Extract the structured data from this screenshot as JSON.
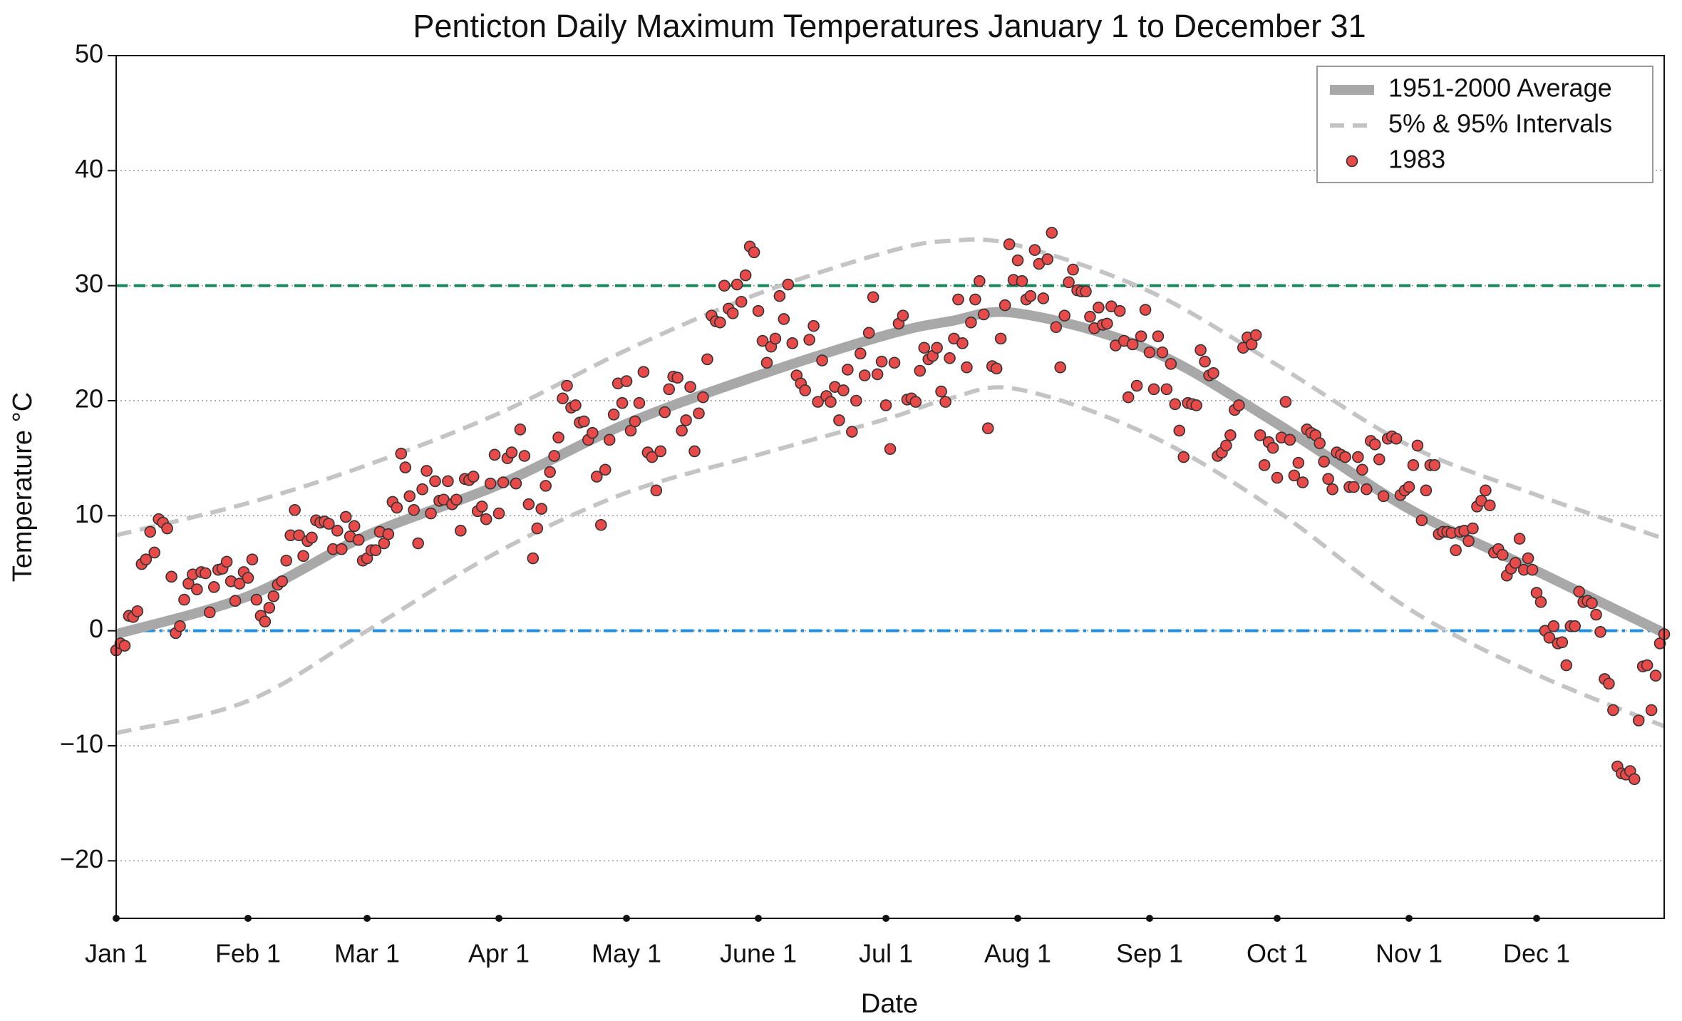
{
  "chart_data": {
    "type": "scatter",
    "title": "Penticton Daily Maximum Temperatures January 1 to December 31",
    "xlabel": "Date",
    "ylabel": "Temperature °C",
    "xlim": [
      1,
      365
    ],
    "xticks": [
      {
        "value": 1,
        "label": "Jan 1"
      },
      {
        "value": 32,
        "label": "Feb 1"
      },
      {
        "value": 60,
        "label": "Mar 1"
      },
      {
        "value": 91,
        "label": "Apr 1"
      },
      {
        "value": 121,
        "label": "May 1"
      },
      {
        "value": 152,
        "label": "June 1"
      },
      {
        "value": 182,
        "label": "Jul 1"
      },
      {
        "value": 213,
        "label": "Aug 1"
      },
      {
        "value": 244,
        "label": "Sep 1"
      },
      {
        "value": 274,
        "label": "Oct 1"
      },
      {
        "value": 305,
        "label": "Nov 1"
      },
      {
        "value": 335,
        "label": "Dec 1"
      }
    ],
    "ylim": [
      -25,
      50
    ],
    "yticks": [
      {
        "value": -20,
        "label": "−20"
      },
      {
        "value": -10,
        "label": "−10"
      },
      0,
      10,
      20,
      30,
      40,
      50
    ],
    "grid": true,
    "legend": "upper right",
    "reference_lines": [
      {
        "value": 30,
        "color": "#17875a",
        "style": "dashed"
      },
      {
        "value": 0,
        "color": "#1b8fe3",
        "style": "dashdot"
      }
    ],
    "series": [
      {
        "name": "1951-2000 Average",
        "type": "line",
        "color": "#a8a8a8",
        "x": [
          1,
          32,
          60,
          91,
          121,
          152,
          182,
          197,
          213,
          244,
          274,
          305,
          335,
          365
        ],
        "values": [
          -0.3,
          3.0,
          8.3,
          12.7,
          18.0,
          22.2,
          25.7,
          26.9,
          27.6,
          24.4,
          18.0,
          10.6,
          5.2,
          -0.2
        ]
      },
      {
        "name": "5% & 95% Intervals",
        "type": "band-lines",
        "color": "#c4c4c4",
        "x": [
          1,
          32,
          60,
          91,
          121,
          152,
          182,
          197,
          213,
          244,
          274,
          305,
          335,
          365
        ],
        "lower": [
          -8.9,
          -6.1,
          0.0,
          6.9,
          12.0,
          15.3,
          18.4,
          20.2,
          21.0,
          17.0,
          10.4,
          1.9,
          -3.8,
          -8.3
        ],
        "upper": [
          8.3,
          11.1,
          14.4,
          18.9,
          24.4,
          29.3,
          32.9,
          33.9,
          33.5,
          29.5,
          23.1,
          16.1,
          11.8,
          8.0
        ]
      },
      {
        "name": "1983",
        "type": "scatter",
        "color": "#e84a4a",
        "x": [
          1,
          2,
          3,
          4,
          5,
          6,
          7,
          8,
          9,
          10,
          11,
          12,
          13,
          14,
          15,
          16,
          17,
          18,
          19,
          20,
          21,
          22,
          23,
          24,
          25,
          26,
          27,
          28,
          29,
          30,
          31,
          32,
          33,
          34,
          35,
          36,
          37,
          38,
          39,
          40,
          41,
          42,
          43,
          44,
          45,
          46,
          47,
          48,
          49,
          50,
          51,
          52,
          53,
          54,
          55,
          56,
          57,
          58,
          59,
          60,
          61,
          62,
          63,
          64,
          65,
          66,
          67,
          68,
          69,
          70,
          71,
          72,
          73,
          74,
          75,
          76,
          77,
          78,
          79,
          80,
          81,
          82,
          83,
          84,
          85,
          86,
          87,
          88,
          89,
          90,
          91,
          92,
          93,
          94,
          95,
          96,
          97,
          98,
          99,
          100,
          101,
          102,
          103,
          104,
          105,
          106,
          107,
          108,
          109,
          110,
          111,
          112,
          113,
          114,
          115,
          116,
          117,
          118,
          119,
          120,
          121,
          122,
          123,
          124,
          125,
          126,
          127,
          128,
          129,
          130,
          131,
          132,
          133,
          134,
          135,
          136,
          137,
          138,
          139,
          140,
          141,
          142,
          143,
          144,
          145,
          146,
          147,
          148,
          149,
          150,
          151,
          152,
          153,
          154,
          155,
          156,
          157,
          158,
          159,
          160,
          161,
          162,
          163,
          164,
          165,
          166,
          167,
          168,
          169,
          170,
          171,
          172,
          173,
          174,
          175,
          176,
          177,
          178,
          179,
          180,
          181,
          182,
          183,
          184,
          185,
          186,
          187,
          188,
          189,
          190,
          191,
          192,
          193,
          194,
          195,
          196,
          197,
          198,
          199,
          200,
          201,
          202,
          203,
          204,
          205,
          206,
          207,
          208,
          209,
          210,
          211,
          212,
          213,
          214,
          215,
          216,
          217,
          218,
          219,
          220,
          221,
          222,
          223,
          224,
          225,
          226,
          227,
          228,
          229,
          230,
          231,
          232,
          233,
          234,
          235,
          236,
          237,
          238,
          239,
          240,
          241,
          242,
          243,
          244,
          245,
          246,
          247,
          248,
          249,
          250,
          251,
          252,
          253,
          254,
          255,
          256,
          257,
          258,
          259,
          260,
          261,
          262,
          263,
          264,
          265,
          266,
          267,
          268,
          269,
          270,
          271,
          272,
          273,
          274,
          275,
          276,
          277,
          278,
          279,
          280,
          281,
          282,
          283,
          284,
          285,
          286,
          287,
          288,
          289,
          290,
          291,
          292,
          293,
          294,
          295,
          296,
          297,
          298,
          299,
          300,
          301,
          302,
          303,
          304,
          305,
          306,
          307,
          308,
          309,
          310,
          311,
          312,
          313,
          314,
          315,
          316,
          317,
          318,
          319,
          320,
          321,
          322,
          323,
          324,
          325,
          326,
          327,
          328,
          329,
          330,
          331,
          332,
          333,
          334,
          335,
          336,
          337,
          338,
          339,
          340,
          341,
          342,
          343,
          344,
          345,
          346,
          347,
          348,
          349,
          350,
          351,
          352,
          353,
          354,
          355,
          356,
          357,
          358,
          359,
          360,
          361,
          362,
          363,
          364,
          365
        ],
        "values": [
          -1.7,
          -1.1,
          -1.3,
          1.3,
          1.2,
          1.7,
          5.8,
          6.2,
          8.6,
          6.8,
          9.7,
          9.4,
          8.9,
          4.7,
          -0.2,
          0.4,
          2.7,
          4.1,
          4.9,
          3.6,
          5.1,
          5.0,
          1.6,
          3.8,
          5.3,
          5.4,
          6.0,
          4.3,
          2.6,
          4.1,
          5.1,
          4.6,
          6.2,
          2.7,
          1.3,
          0.8,
          2.0,
          3.0,
          4.0,
          4.3,
          6.1,
          8.3,
          10.5,
          8.3,
          6.5,
          7.8,
          8.1,
          9.6,
          9.4,
          9.5,
          9.3,
          7.1,
          8.7,
          7.1,
          9.9,
          8.2,
          9.1,
          7.9,
          6.1,
          6.3,
          7.0,
          7.0,
          8.6,
          7.6,
          8.4,
          11.2,
          10.7,
          15.4,
          14.2,
          11.7,
          10.5,
          7.6,
          12.3,
          13.9,
          10.2,
          13.0,
          11.3,
          11.4,
          13.0,
          11.0,
          11.4,
          8.7,
          13.2,
          13.1,
          13.4,
          10.4,
          10.8,
          9.7,
          12.8,
          15.3,
          10.2,
          12.9,
          15.0,
          15.5,
          12.8,
          17.5,
          15.2,
          11.0,
          6.3,
          8.9,
          10.6,
          12.6,
          13.8,
          15.2,
          16.8,
          20.2,
          21.3,
          19.4,
          19.6,
          18.1,
          18.2,
          16.6,
          17.2,
          13.4,
          9.2,
          14.0,
          16.6,
          18.8,
          21.5,
          19.8,
          21.7,
          17.4,
          18.2,
          19.8,
          22.5,
          15.5,
          15.1,
          12.2,
          15.6,
          19.0,
          21.0,
          22.1,
          22.0,
          17.4,
          18.3,
          21.2,
          15.6,
          18.9,
          20.3,
          23.6,
          27.4,
          26.9,
          26.8,
          30.0,
          28.0,
          27.6,
          30.1,
          28.6,
          30.9,
          33.4,
          32.9,
          27.8,
          25.2,
          23.3,
          24.7,
          25.4,
          29.1,
          27.1,
          30.1,
          25.0,
          22.2,
          21.5,
          20.9,
          25.3,
          26.5,
          19.9,
          23.5,
          20.4,
          19.9,
          21.2,
          18.3,
          20.9,
          22.7,
          17.3,
          20.0,
          24.1,
          22.2,
          25.9,
          29.0,
          22.3,
          23.4,
          19.6,
          15.8,
          23.3,
          26.7,
          27.4,
          20.1,
          20.2,
          19.9,
          22.6,
          24.6,
          23.6,
          23.9,
          24.6,
          20.8,
          19.9,
          23.7,
          25.4,
          28.8,
          25.0,
          22.9,
          26.8,
          28.8,
          30.4,
          27.5,
          17.6,
          23.0,
          22.8,
          25.4,
          28.3,
          33.6,
          30.5,
          32.2,
          30.4,
          28.8,
          29.1,
          33.1,
          31.9,
          28.9,
          32.3,
          34.6,
          26.4,
          22.9,
          27.4,
          30.3,
          31.4,
          29.6,
          29.5,
          29.5,
          27.3,
          26.3,
          28.1,
          26.6,
          26.7,
          28.2,
          24.8,
          27.8,
          25.2,
          20.3,
          24.9,
          21.3,
          25.6,
          27.9,
          24.2,
          21.0,
          25.6,
          24.2,
          21.0,
          23.2,
          19.7,
          17.4,
          15.1,
          19.8,
          19.7,
          19.6,
          24.4,
          23.4,
          22.2,
          22.4,
          15.2,
          15.5,
          16.1,
          17.0,
          19.2,
          19.6,
          24.6,
          25.5,
          24.9,
          25.7,
          17.0,
          14.4,
          16.4,
          15.9,
          13.3,
          16.8,
          19.9,
          16.6,
          13.5,
          14.6,
          12.9,
          17.5,
          17.2,
          17.0,
          16.3,
          14.7,
          13.2,
          12.3,
          15.5,
          15.3,
          15.1,
          12.5,
          12.5,
          15.1,
          14.0,
          12.3,
          16.5,
          16.2,
          14.9,
          11.7,
          16.7,
          16.9,
          16.7,
          11.8,
          12.2,
          12.5,
          14.4,
          16.1,
          9.6,
          12.2,
          14.4,
          14.4,
          8.4,
          8.6,
          8.6,
          8.5,
          7.0,
          8.6,
          8.7,
          7.8,
          8.9,
          10.8,
          11.3,
          12.2,
          10.9,
          6.8,
          7.1,
          6.6,
          4.8,
          5.4,
          5.9,
          8.0,
          5.3,
          6.3,
          5.3,
          3.3,
          2.5,
          0.0,
          -0.6,
          0.4,
          -1.1,
          -1.0,
          -3.0,
          0.4,
          0.4,
          3.4,
          2.5,
          2.6,
          2.4,
          1.4,
          -0.1,
          -4.2,
          -4.6,
          -6.9,
          -11.8,
          -12.4,
          -12.5,
          -12.2,
          -12.9,
          -7.8,
          -3.1,
          -3.0,
          -6.9,
          -3.9,
          -1.1,
          -0.3
        ]
      }
    ]
  }
}
